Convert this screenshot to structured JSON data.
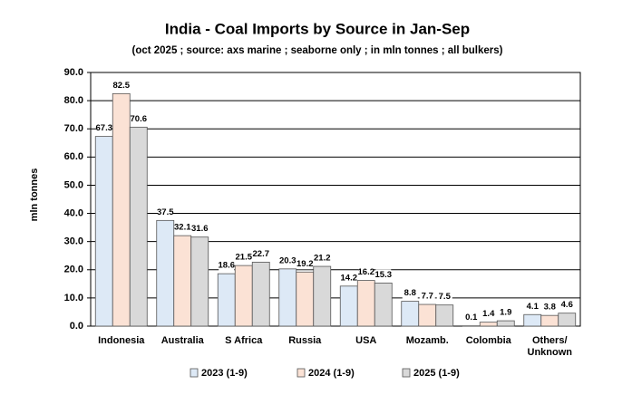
{
  "chart_data": {
    "type": "bar",
    "title": "India - Coal Imports by Source in Jan-Sep",
    "subtitle": "(oct 2025 ; source: axs marine ; seaborne only ; in mln tonnes ; all bulkers)",
    "y_label": "mln tonnes",
    "categories": [
      "Indonesia",
      "Australia",
      "S Africa",
      "Russia",
      "USA",
      "Mozamb.",
      "Colombia",
      "Others/ Unknown"
    ],
    "series": [
      {
        "name": "2023 (1-9)",
        "color": "#dde9f6",
        "values": [
          67.3,
          37.5,
          18.6,
          20.3,
          14.2,
          8.8,
          0.1,
          4.1
        ]
      },
      {
        "name": "2024 (1-9)",
        "color": "#fbe2d5",
        "values": [
          82.5,
          32.1,
          21.5,
          19.2,
          16.2,
          7.7,
          1.4,
          3.8
        ]
      },
      {
        "name": "2025 (1-9)",
        "color": "#d9d9d9",
        "values": [
          70.6,
          31.6,
          22.7,
          21.2,
          15.3,
          7.5,
          1.9,
          4.6
        ]
      }
    ],
    "ylim": [
      0,
      90
    ],
    "yticks": [
      {
        "value": 0,
        "label": "0.0"
      },
      {
        "value": 10,
        "label": "10.0"
      },
      {
        "value": 20,
        "label": "20.0"
      },
      {
        "value": 30,
        "label": "30.0"
      },
      {
        "value": 40,
        "label": "40.0"
      },
      {
        "value": 50,
        "label": "50.0"
      },
      {
        "value": 60,
        "label": "60.0"
      },
      {
        "value": 70,
        "label": "70.0"
      },
      {
        "value": 80,
        "label": "80.0"
      },
      {
        "value": 90,
        "label": "90.0"
      }
    ],
    "grid": true
  }
}
